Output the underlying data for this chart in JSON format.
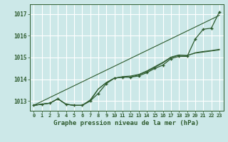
{
  "background_color": "#cce8e8",
  "grid_color": "#ffffff",
  "line_color": "#2d5a2d",
  "title": "Graphe pression niveau de la mer (hPa)",
  "xlim": [
    -0.5,
    23.5
  ],
  "ylim": [
    1012.55,
    1017.45
  ],
  "yticks": [
    1013,
    1014,
    1015,
    1016,
    1017
  ],
  "xticks": [
    0,
    1,
    2,
    3,
    4,
    5,
    6,
    7,
    8,
    9,
    10,
    11,
    12,
    13,
    14,
    15,
    16,
    17,
    18,
    19,
    20,
    21,
    22,
    23
  ],
  "series_main": [
    1012.8,
    1012.85,
    1012.9,
    1013.1,
    1012.85,
    1012.8,
    1012.8,
    1013.0,
    1013.35,
    1013.8,
    1014.05,
    1014.1,
    1014.1,
    1014.15,
    1014.3,
    1014.5,
    1014.65,
    1014.95,
    1015.05,
    1015.05,
    1015.85,
    1016.3,
    1016.35,
    1017.1
  ],
  "series_smooth1": [
    1012.8,
    1012.85,
    1012.9,
    1013.1,
    1012.85,
    1012.8,
    1012.8,
    1013.05,
    1013.55,
    1013.85,
    1014.05,
    1014.1,
    1014.1,
    1014.2,
    1014.35,
    1014.55,
    1014.75,
    1015.0,
    1015.1,
    1015.1,
    1015.2,
    1015.25,
    1015.3,
    1015.35
  ],
  "series_smooth2": [
    1012.8,
    1012.85,
    1012.9,
    1013.1,
    1012.85,
    1012.8,
    1012.8,
    1013.0,
    1013.55,
    1013.85,
    1014.05,
    1014.12,
    1014.15,
    1014.22,
    1014.38,
    1014.58,
    1014.78,
    1015.02,
    1015.12,
    1015.08,
    1015.22,
    1015.28,
    1015.32,
    1015.38
  ],
  "series_linear": [
    1012.8,
    1012.98,
    1013.16,
    1013.34,
    1013.52,
    1013.7,
    1013.88,
    1014.06,
    1014.24,
    1014.42,
    1014.6,
    1014.78,
    1014.96,
    1015.14,
    1015.32,
    1015.5,
    1015.68,
    1015.86,
    1016.04,
    1016.22,
    1016.4,
    1016.58,
    1016.76,
    1016.94
  ]
}
